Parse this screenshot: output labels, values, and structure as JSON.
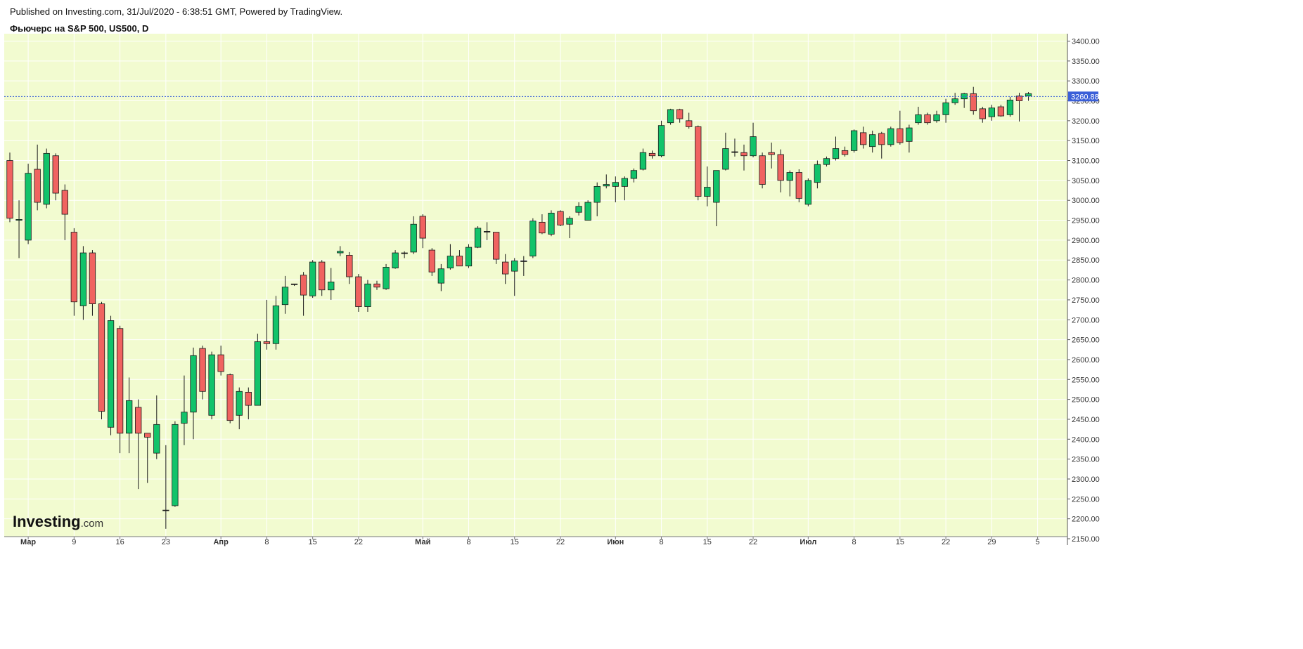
{
  "header": {
    "published": "Published on Investing.com, 31/Jul/2020 - 6:38:51 GMT, Powered by TradingView.",
    "instrument": "Фьючерс на S&P 500, US500, D"
  },
  "logo": {
    "main": "Investing",
    "sub": ".com"
  },
  "colors": {
    "background": "#f2fbd0",
    "grid": "#ffffff",
    "up": "#12c36a",
    "down": "#f06360",
    "outline": "#1a1a1a",
    "current_price": "#3a5fd8"
  },
  "chart_data": {
    "type": "candlestick",
    "title": "Фьючерс на S&P 500, US500, D",
    "ylim": [
      2125,
      3425
    ],
    "y_ticks": [
      2150,
      2200,
      2250,
      2300,
      2350,
      2400,
      2450,
      2500,
      2550,
      2600,
      2650,
      2700,
      2750,
      2800,
      2850,
      2900,
      2950,
      3000,
      3050,
      3100,
      3150,
      3200,
      3250,
      3300,
      3350,
      3400
    ],
    "y_tick_labels": [
      "2150.00",
      "2200.00",
      "2250.00",
      "2300.00",
      "2350.00",
      "2400.00",
      "2450.00",
      "2500.00",
      "2550.00",
      "2600.00",
      "2650.00",
      "2700.00",
      "2750.00",
      "2800.00",
      "2850.00",
      "2900.00",
      "2950.00",
      "3000.00",
      "3050.00",
      "3100.00",
      "3150.00",
      "3200.00",
      "3250.00",
      "3300.00",
      "3350.00",
      "3400.00"
    ],
    "x_ticks": [
      {
        "label": "Мар",
        "index": 2,
        "major": true
      },
      {
        "label": "9",
        "index": 7,
        "major": false
      },
      {
        "label": "16",
        "index": 12,
        "major": false
      },
      {
        "label": "23",
        "index": 17,
        "major": false
      },
      {
        "label": "Апр",
        "index": 23,
        "major": true
      },
      {
        "label": "8",
        "index": 28,
        "major": false
      },
      {
        "label": "15",
        "index": 33,
        "major": false
      },
      {
        "label": "22",
        "index": 38,
        "major": false
      },
      {
        "label": "Май",
        "index": 45,
        "major": true
      },
      {
        "label": "8",
        "index": 50,
        "major": false
      },
      {
        "label": "15",
        "index": 55,
        "major": false
      },
      {
        "label": "22",
        "index": 60,
        "major": false
      },
      {
        "label": "Июн",
        "index": 66,
        "major": true
      },
      {
        "label": "8",
        "index": 71,
        "major": false
      },
      {
        "label": "15",
        "index": 76,
        "major": false
      },
      {
        "label": "22",
        "index": 81,
        "major": false
      },
      {
        "label": "Июл",
        "index": 87,
        "major": true
      },
      {
        "label": "8",
        "index": 92,
        "major": false
      },
      {
        "label": "15",
        "index": 97,
        "major": false
      },
      {
        "label": "22",
        "index": 102,
        "major": false
      },
      {
        "label": "29",
        "index": 107,
        "major": false
      },
      {
        "label": "5",
        "index": 112,
        "major": false
      }
    ],
    "current_price": 3260.88,
    "current_price_label": "3260.88",
    "candles": [
      {
        "o": 3100,
        "h": 3120,
        "l": 2945,
        "c": 2955
      },
      {
        "o": 2950,
        "h": 3000,
        "l": 2855,
        "c": 2952
      },
      {
        "o": 2900,
        "h": 3092,
        "l": 2890,
        "c": 3068
      },
      {
        "o": 3078,
        "h": 3140,
        "l": 2975,
        "c": 2995
      },
      {
        "o": 2990,
        "h": 3130,
        "l": 2980,
        "c": 3118
      },
      {
        "o": 3112,
        "h": 3118,
        "l": 3000,
        "c": 3018
      },
      {
        "o": 3025,
        "h": 3040,
        "l": 2900,
        "c": 2965
      },
      {
        "o": 2920,
        "h": 2930,
        "l": 2710,
        "c": 2745
      },
      {
        "o": 2735,
        "h": 2885,
        "l": 2700,
        "c": 2868
      },
      {
        "o": 2868,
        "h": 2875,
        "l": 2710,
        "c": 2740
      },
      {
        "o": 2740,
        "h": 2745,
        "l": 2450,
        "c": 2470
      },
      {
        "o": 2430,
        "h": 2710,
        "l": 2410,
        "c": 2698
      },
      {
        "o": 2678,
        "h": 2685,
        "l": 2365,
        "c": 2415
      },
      {
        "o": 2415,
        "h": 2555,
        "l": 2365,
        "c": 2497
      },
      {
        "o": 2480,
        "h": 2500,
        "l": 2275,
        "c": 2415
      },
      {
        "o": 2415,
        "h": 2410,
        "l": 2290,
        "c": 2405
      },
      {
        "o": 2365,
        "h": 2510,
        "l": 2350,
        "c": 2437
      },
      {
        "o": 2222,
        "h": 2385,
        "l": 2175,
        "c": 2222
      },
      {
        "o": 2233,
        "h": 2445,
        "l": 2230,
        "c": 2437
      },
      {
        "o": 2440,
        "h": 2560,
        "l": 2385,
        "c": 2468
      },
      {
        "o": 2468,
        "h": 2630,
        "l": 2400,
        "c": 2610
      },
      {
        "o": 2628,
        "h": 2635,
        "l": 2500,
        "c": 2520
      },
      {
        "o": 2460,
        "h": 2620,
        "l": 2450,
        "c": 2612
      },
      {
        "o": 2612,
        "h": 2635,
        "l": 2560,
        "c": 2570
      },
      {
        "o": 2562,
        "h": 2565,
        "l": 2440,
        "c": 2447
      },
      {
        "o": 2460,
        "h": 2530,
        "l": 2425,
        "c": 2520
      },
      {
        "o": 2518,
        "h": 2530,
        "l": 2450,
        "c": 2485
      },
      {
        "o": 2485,
        "h": 2665,
        "l": 2485,
        "c": 2645
      },
      {
        "o": 2645,
        "h": 2750,
        "l": 2625,
        "c": 2640
      },
      {
        "o": 2640,
        "h": 2760,
        "l": 2625,
        "c": 2735
      },
      {
        "o": 2738,
        "h": 2810,
        "l": 2715,
        "c": 2782
      },
      {
        "o": 2790,
        "h": 2790,
        "l": 2785,
        "c": 2790
      },
      {
        "o": 2812,
        "h": 2820,
        "l": 2710,
        "c": 2762
      },
      {
        "o": 2760,
        "h": 2850,
        "l": 2755,
        "c": 2845
      },
      {
        "o": 2845,
        "h": 2850,
        "l": 2760,
        "c": 2775
      },
      {
        "o": 2775,
        "h": 2830,
        "l": 2750,
        "c": 2795
      },
      {
        "o": 2868,
        "h": 2885,
        "l": 2860,
        "c": 2872
      },
      {
        "o": 2862,
        "h": 2870,
        "l": 2790,
        "c": 2808
      },
      {
        "o": 2808,
        "h": 2815,
        "l": 2720,
        "c": 2733
      },
      {
        "o": 2733,
        "h": 2800,
        "l": 2720,
        "c": 2790
      },
      {
        "o": 2790,
        "h": 2798,
        "l": 2775,
        "c": 2782
      },
      {
        "o": 2778,
        "h": 2840,
        "l": 2775,
        "c": 2832
      },
      {
        "o": 2830,
        "h": 2875,
        "l": 2828,
        "c": 2868
      },
      {
        "o": 2868,
        "h": 2872,
        "l": 2855,
        "c": 2868
      },
      {
        "o": 2870,
        "h": 2960,
        "l": 2865,
        "c": 2940
      },
      {
        "o": 2960,
        "h": 2965,
        "l": 2880,
        "c": 2905
      },
      {
        "o": 2875,
        "h": 2880,
        "l": 2810,
        "c": 2820
      },
      {
        "o": 2792,
        "h": 2840,
        "l": 2772,
        "c": 2828
      },
      {
        "o": 2830,
        "h": 2890,
        "l": 2826,
        "c": 2860
      },
      {
        "o": 2860,
        "h": 2875,
        "l": 2835,
        "c": 2835
      },
      {
        "o": 2835,
        "h": 2890,
        "l": 2830,
        "c": 2882
      },
      {
        "o": 2882,
        "h": 2935,
        "l": 2880,
        "c": 2930
      },
      {
        "o": 2922,
        "h": 2945,
        "l": 2900,
        "c": 2922
      },
      {
        "o": 2920,
        "h": 2920,
        "l": 2840,
        "c": 2852
      },
      {
        "o": 2845,
        "h": 2865,
        "l": 2790,
        "c": 2815
      },
      {
        "o": 2822,
        "h": 2855,
        "l": 2760,
        "c": 2848
      },
      {
        "o": 2848,
        "h": 2860,
        "l": 2810,
        "c": 2848
      },
      {
        "o": 2860,
        "h": 2955,
        "l": 2855,
        "c": 2948
      },
      {
        "o": 2945,
        "h": 2965,
        "l": 2915,
        "c": 2918
      },
      {
        "o": 2915,
        "h": 2975,
        "l": 2910,
        "c": 2968
      },
      {
        "o": 2972,
        "h": 2975,
        "l": 2935,
        "c": 2938
      },
      {
        "o": 2940,
        "h": 2960,
        "l": 2905,
        "c": 2955
      },
      {
        "o": 2970,
        "h": 2995,
        "l": 2962,
        "c": 2985
      },
      {
        "o": 2950,
        "h": 3000,
        "l": 2950,
        "c": 2995
      },
      {
        "o": 2995,
        "h": 3045,
        "l": 2960,
        "c": 3035
      },
      {
        "o": 3036,
        "h": 3065,
        "l": 3030,
        "c": 3040
      },
      {
        "o": 3035,
        "h": 3060,
        "l": 2995,
        "c": 3045
      },
      {
        "o": 3035,
        "h": 3060,
        "l": 3000,
        "c": 3055
      },
      {
        "o": 3055,
        "h": 3080,
        "l": 3045,
        "c": 3075
      },
      {
        "o": 3078,
        "h": 3130,
        "l": 3075,
        "c": 3120
      },
      {
        "o": 3118,
        "h": 3125,
        "l": 3105,
        "c": 3112
      },
      {
        "o": 3112,
        "h": 3200,
        "l": 3108,
        "c": 3188
      },
      {
        "o": 3195,
        "h": 3230,
        "l": 3190,
        "c": 3228
      },
      {
        "o": 3228,
        "h": 3230,
        "l": 3195,
        "c": 3205
      },
      {
        "o": 3200,
        "h": 3220,
        "l": 3180,
        "c": 3185
      },
      {
        "o": 3185,
        "h": 3188,
        "l": 3000,
        "c": 3010
      },
      {
        "o": 3010,
        "h": 3085,
        "l": 2985,
        "c": 3033
      },
      {
        "o": 2995,
        "h": 3075,
        "l": 2935,
        "c": 3075
      },
      {
        "o": 3078,
        "h": 3170,
        "l": 3075,
        "c": 3130
      },
      {
        "o": 3122,
        "h": 3155,
        "l": 3110,
        "c": 3122
      },
      {
        "o": 3120,
        "h": 3140,
        "l": 3075,
        "c": 3112
      },
      {
        "o": 3112,
        "h": 3195,
        "l": 3108,
        "c": 3160
      },
      {
        "o": 3112,
        "h": 3120,
        "l": 3030,
        "c": 3040
      },
      {
        "o": 3120,
        "h": 3145,
        "l": 3080,
        "c": 3115
      },
      {
        "o": 3115,
        "h": 3128,
        "l": 3020,
        "c": 3050
      },
      {
        "o": 3050,
        "h": 3075,
        "l": 3010,
        "c": 3070
      },
      {
        "o": 3070,
        "h": 3078,
        "l": 2995,
        "c": 3005
      },
      {
        "o": 2990,
        "h": 3055,
        "l": 2985,
        "c": 3050
      },
      {
        "o": 3045,
        "h": 3100,
        "l": 3030,
        "c": 3090
      },
      {
        "o": 3090,
        "h": 3110,
        "l": 3085,
        "c": 3105
      },
      {
        "o": 3105,
        "h": 3160,
        "l": 3100,
        "c": 3130
      },
      {
        "o": 3125,
        "h": 3135,
        "l": 3110,
        "c": 3115
      },
      {
        "o": 3125,
        "h": 3178,
        "l": 3120,
        "c": 3175
      },
      {
        "o": 3170,
        "h": 3185,
        "l": 3130,
        "c": 3140
      },
      {
        "o": 3135,
        "h": 3175,
        "l": 3120,
        "c": 3165
      },
      {
        "o": 3168,
        "h": 3172,
        "l": 3105,
        "c": 3140
      },
      {
        "o": 3140,
        "h": 3185,
        "l": 3135,
        "c": 3180
      },
      {
        "o": 3180,
        "h": 3225,
        "l": 3140,
        "c": 3145
      },
      {
        "o": 3148,
        "h": 3190,
        "l": 3120,
        "c": 3182
      },
      {
        "o": 3195,
        "h": 3235,
        "l": 3190,
        "c": 3215
      },
      {
        "o": 3215,
        "h": 3220,
        "l": 3190,
        "c": 3195
      },
      {
        "o": 3200,
        "h": 3225,
        "l": 3195,
        "c": 3215
      },
      {
        "o": 3215,
        "h": 3255,
        "l": 3195,
        "c": 3245
      },
      {
        "o": 3245,
        "h": 3270,
        "l": 3240,
        "c": 3255
      },
      {
        "o": 3255,
        "h": 3270,
        "l": 3232,
        "c": 3268
      },
      {
        "o": 3268,
        "h": 3285,
        "l": 3215,
        "c": 3225
      },
      {
        "o": 3230,
        "h": 3235,
        "l": 3195,
        "c": 3205
      },
      {
        "o": 3210,
        "h": 3240,
        "l": 3200,
        "c": 3232
      },
      {
        "o": 3235,
        "h": 3240,
        "l": 3210,
        "c": 3212
      },
      {
        "o": 3215,
        "h": 3260,
        "l": 3210,
        "c": 3252
      },
      {
        "o": 3262,
        "h": 3270,
        "l": 3198,
        "c": 3250
      },
      {
        "o": 3262,
        "h": 3272,
        "l": 3250,
        "c": 3268
      }
    ]
  }
}
